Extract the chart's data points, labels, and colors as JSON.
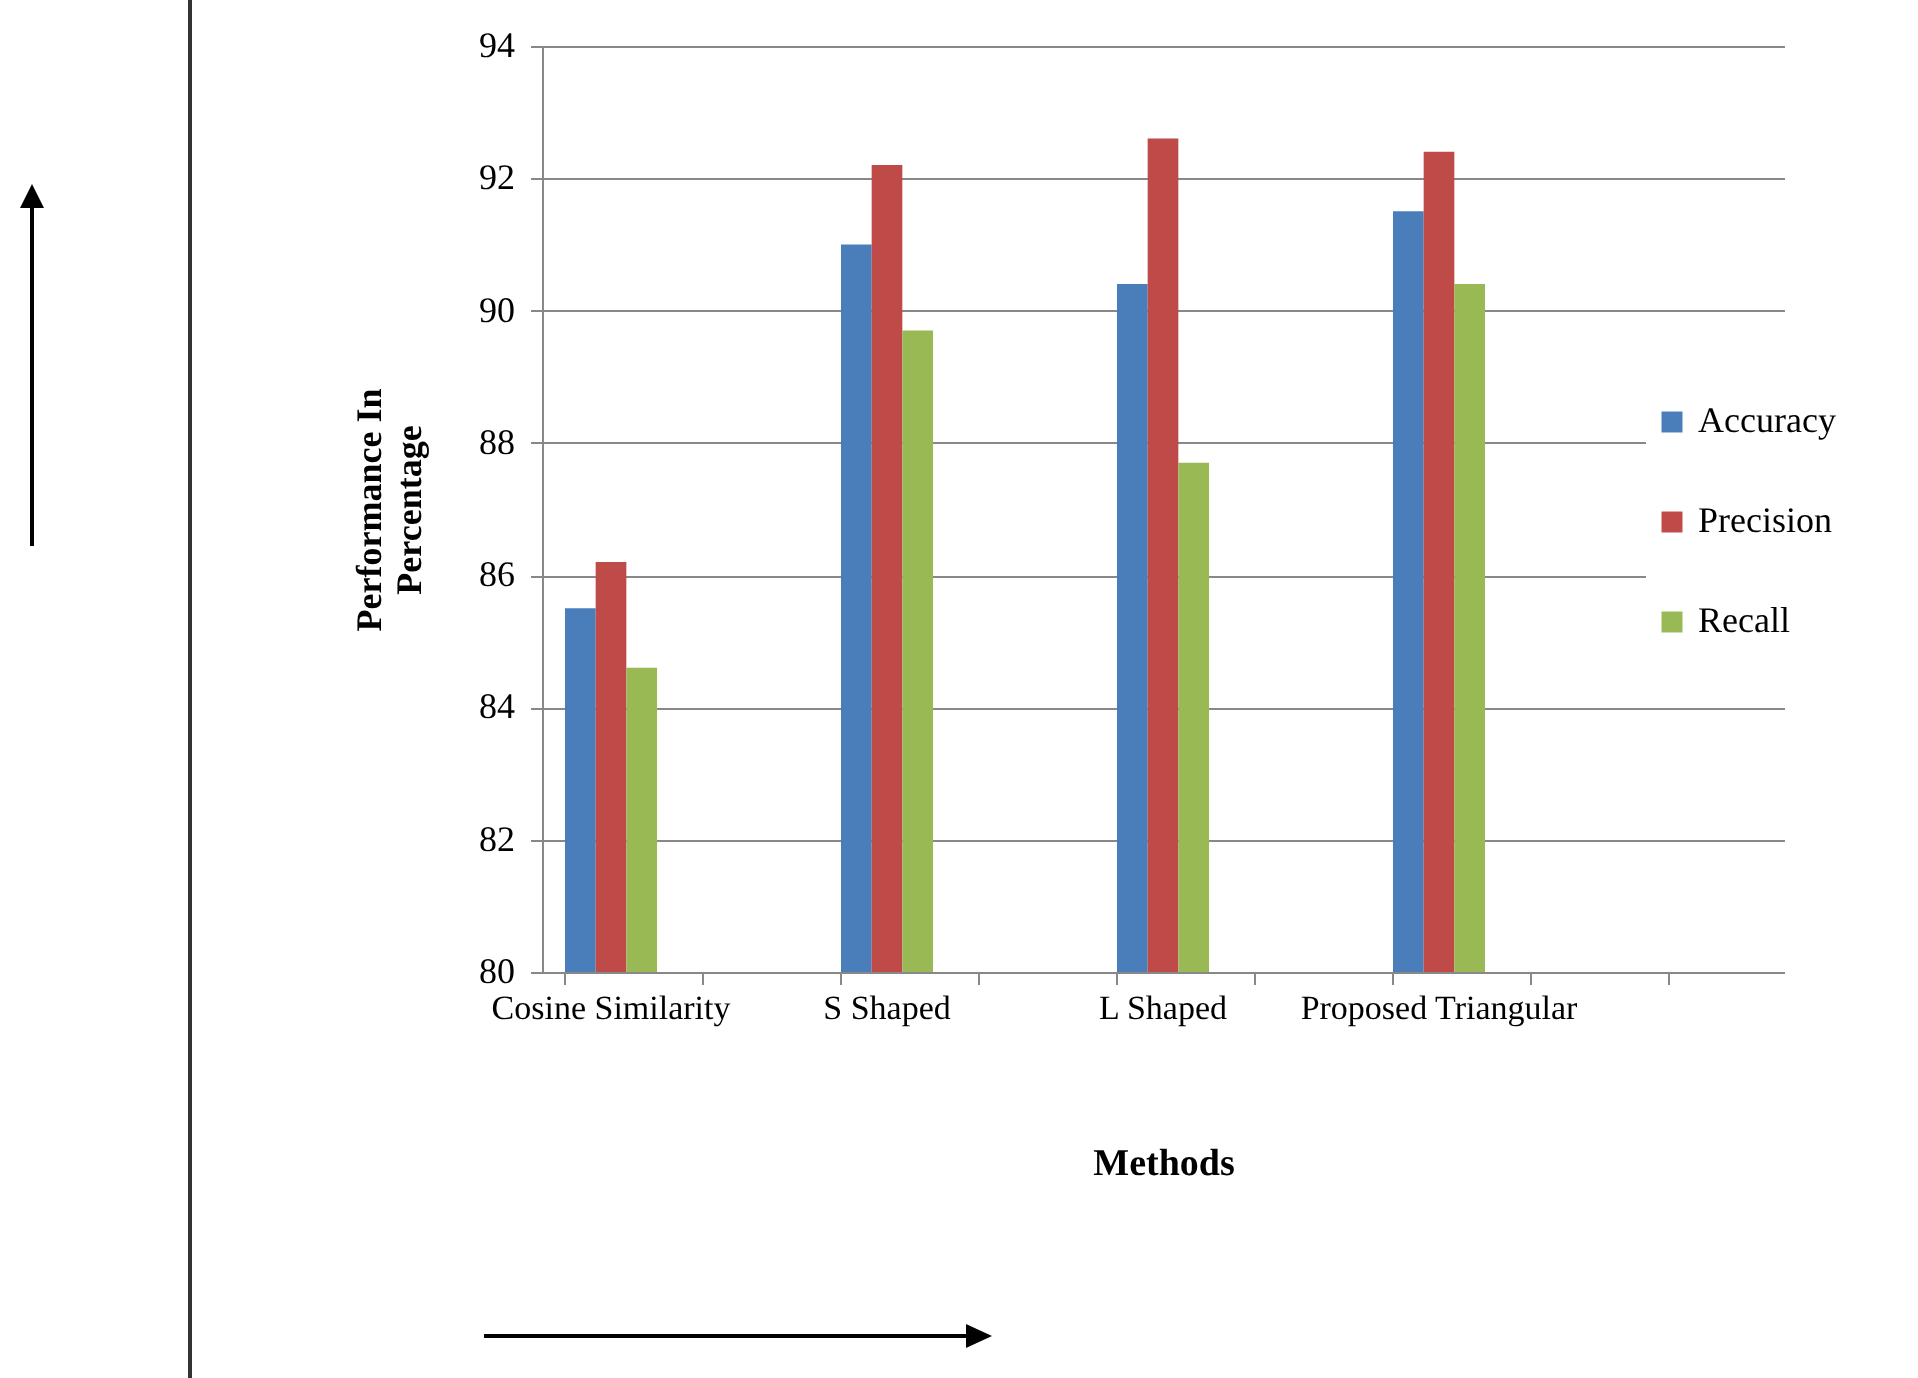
{
  "chart_data": {
    "type": "bar",
    "xlabel": "Methods",
    "ylabel": "Performance In Percentage",
    "categories": [
      "Cosine Similarity",
      null,
      "S Shaped",
      null,
      "L Shaped",
      null,
      "Proposed Triangular",
      null,
      null
    ],
    "series": [
      {
        "name": "Accuracy",
        "color": "#4a7ebb",
        "values": [
          85.5,
          null,
          91.0,
          null,
          90.4,
          null,
          91.5,
          null,
          null
        ]
      },
      {
        "name": "Precision",
        "color": "#be4b48",
        "values": [
          86.2,
          null,
          92.2,
          null,
          92.6,
          null,
          92.4,
          null,
          null
        ]
      },
      {
        "name": "Recall",
        "color": "#98b954",
        "values": [
          84.6,
          null,
          89.7,
          null,
          87.7,
          null,
          90.4,
          null,
          null
        ]
      }
    ],
    "ylim": [
      80,
      94
    ],
    "yticks": [
      80,
      82,
      84,
      86,
      88,
      90,
      92,
      94
    ],
    "grid": "y",
    "legend": "right"
  }
}
